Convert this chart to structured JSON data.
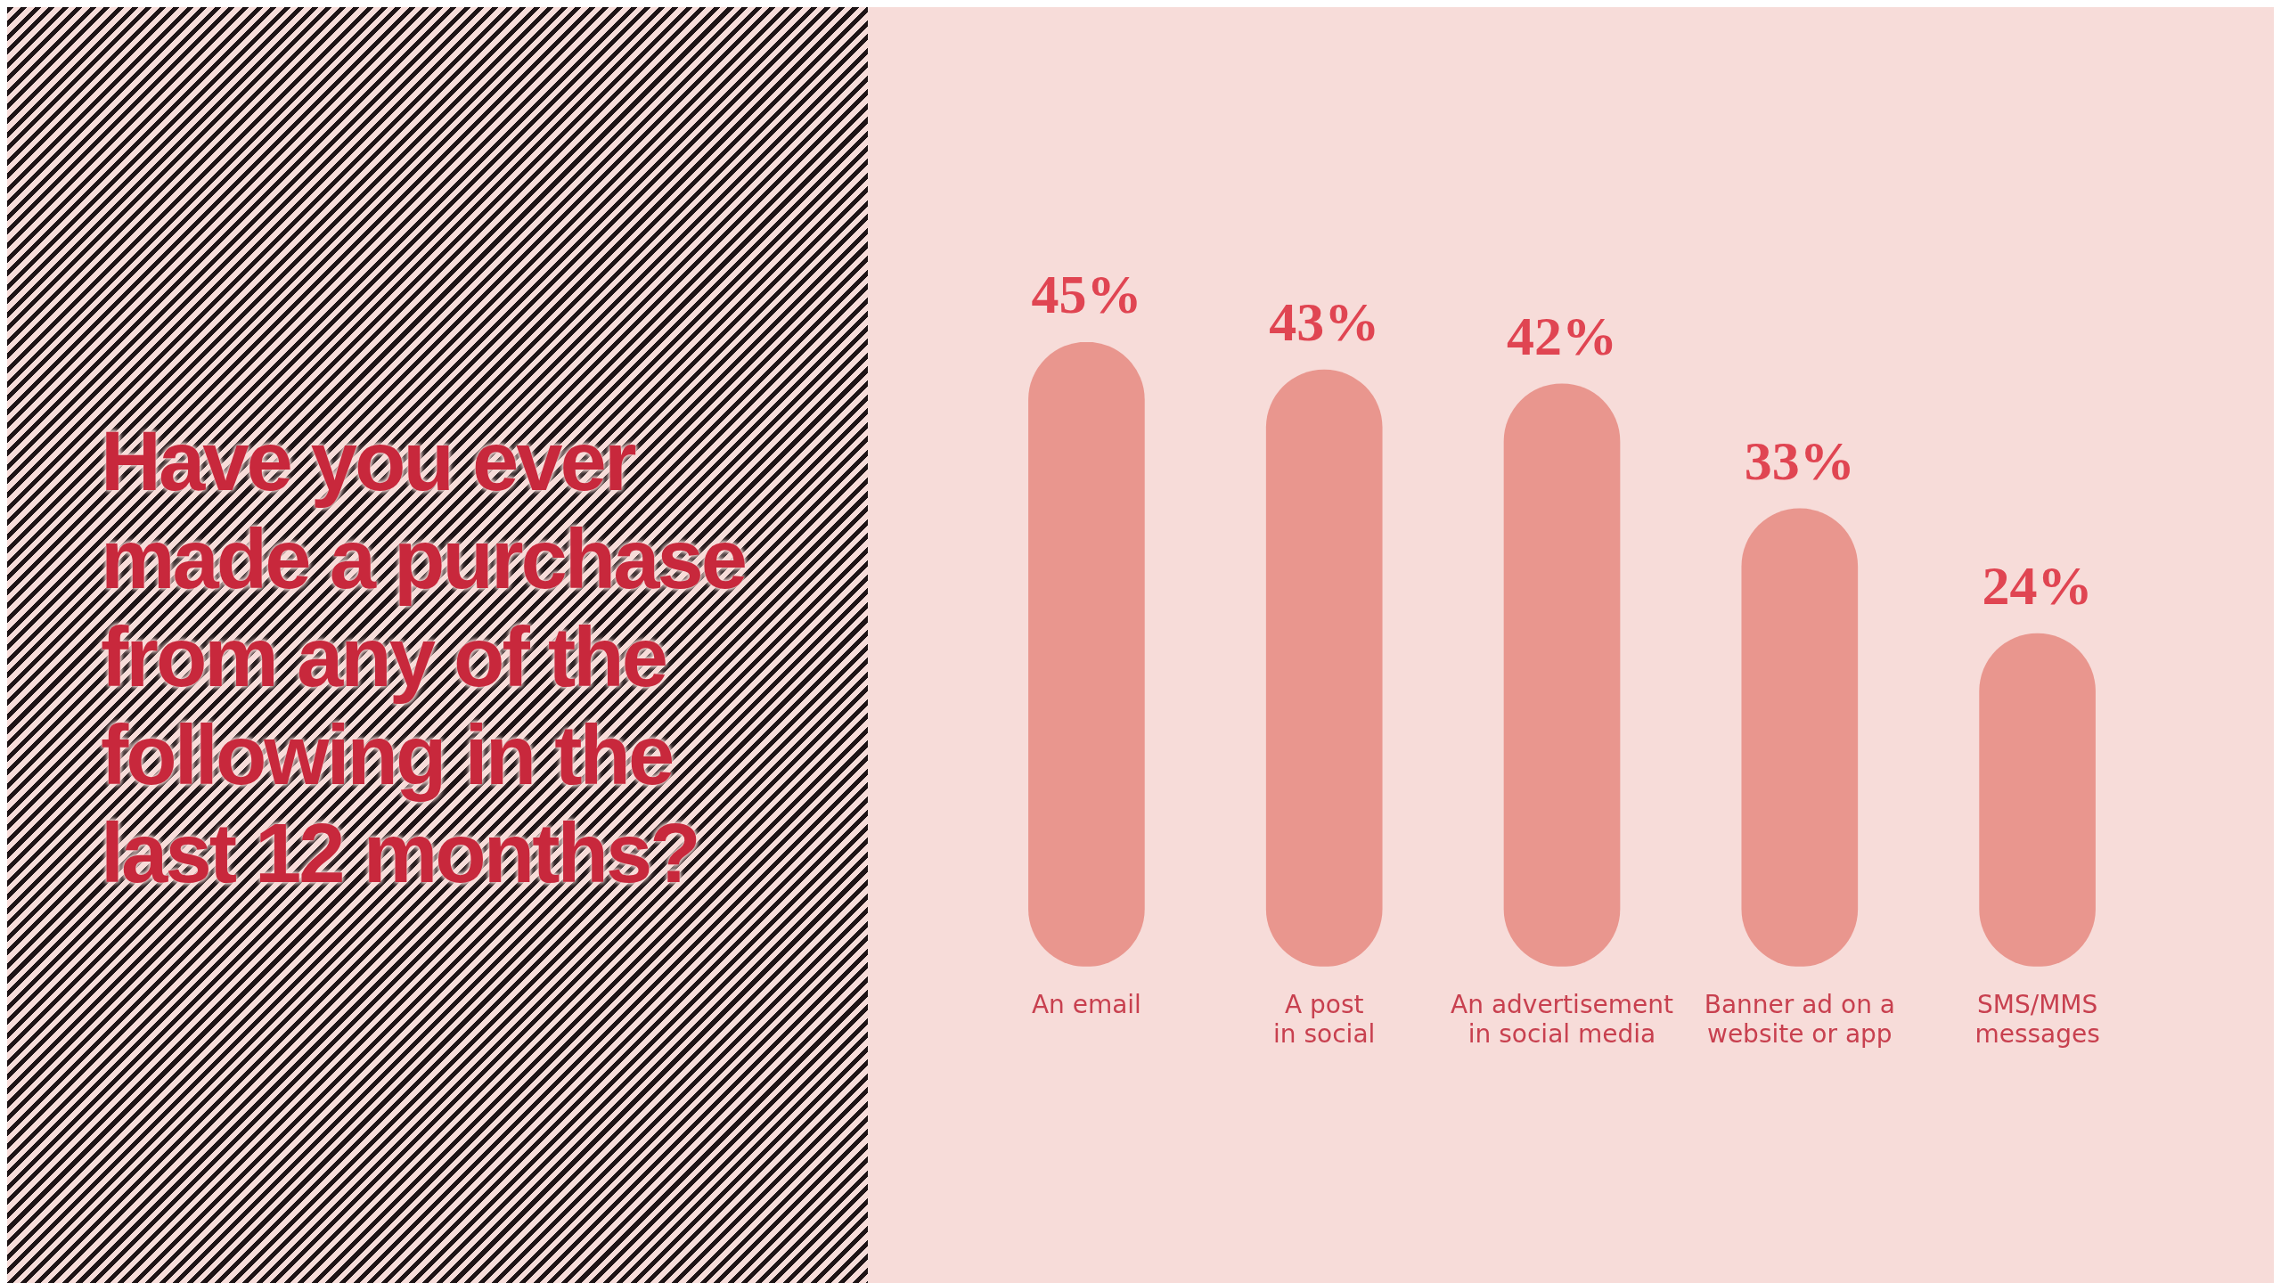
{
  "chart_data": {
    "type": "bar",
    "title": "Have you ever made a purchase from any of the following in the last 12 months?",
    "categories": [
      "An email",
      "A post\nin social",
      "An advertisement\nin social media",
      "Banner ad on a\nwebsite or app",
      "SMS/MMS\nmessages"
    ],
    "values": [
      45,
      43,
      42,
      33,
      24
    ],
    "color": "#e9968e",
    "value_labels": [
      "45%",
      "43%",
      "42%",
      "33%",
      "24%"
    ],
    "tick_labels": "x",
    "grid": false,
    "legend": false
  }
}
